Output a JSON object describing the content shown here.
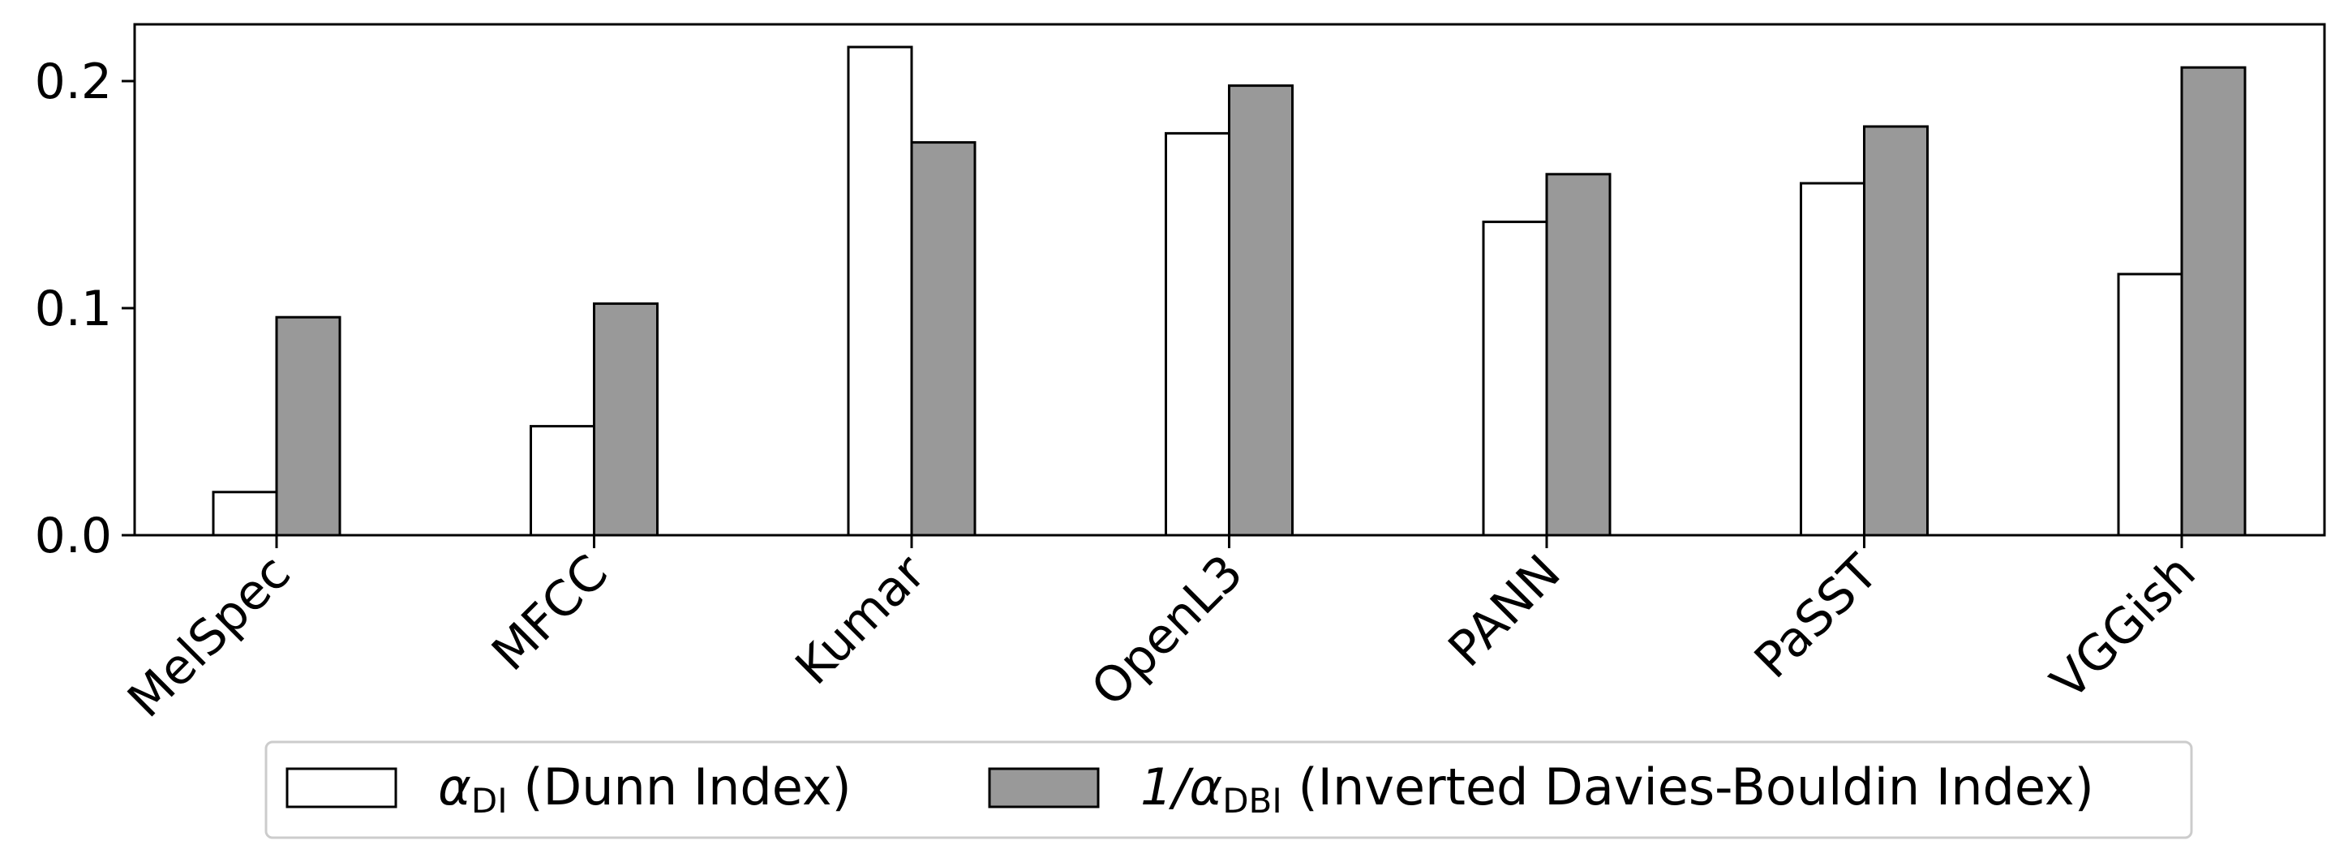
{
  "chart_data": {
    "type": "bar",
    "categories": [
      "MelSpec",
      "MFCC",
      "Kumar",
      "OpenL3",
      "PANN",
      "PaSST",
      "VGGish"
    ],
    "series": [
      {
        "name": "αDI (Dunn Index)",
        "label_parts": {
          "symbol": "α",
          "subscript": "DI",
          "text": " (Dunn Index)"
        },
        "values": [
          0.019,
          0.048,
          0.215,
          0.177,
          0.138,
          0.155,
          0.115
        ],
        "color": "#ffffff"
      },
      {
        "name": "1/αDBI (Inverted Davies-Bouldin Index)",
        "label_parts": {
          "symbol": "1/α",
          "subscript": "DBI",
          "text": " (Inverted Davies-Bouldin Index)"
        },
        "values": [
          0.096,
          0.102,
          0.173,
          0.198,
          0.159,
          0.18,
          0.206
        ],
        "color": "#999999"
      }
    ],
    "title": "",
    "xlabel": "",
    "ylabel": "",
    "ylim": [
      0,
      0.225
    ],
    "yticks": [
      "0.0",
      "0.1",
      "0.2"
    ],
    "ytick_values": [
      0,
      0.1,
      0.2
    ],
    "grid": false,
    "legend": "bottom-center",
    "edge_color": "#000000"
  }
}
